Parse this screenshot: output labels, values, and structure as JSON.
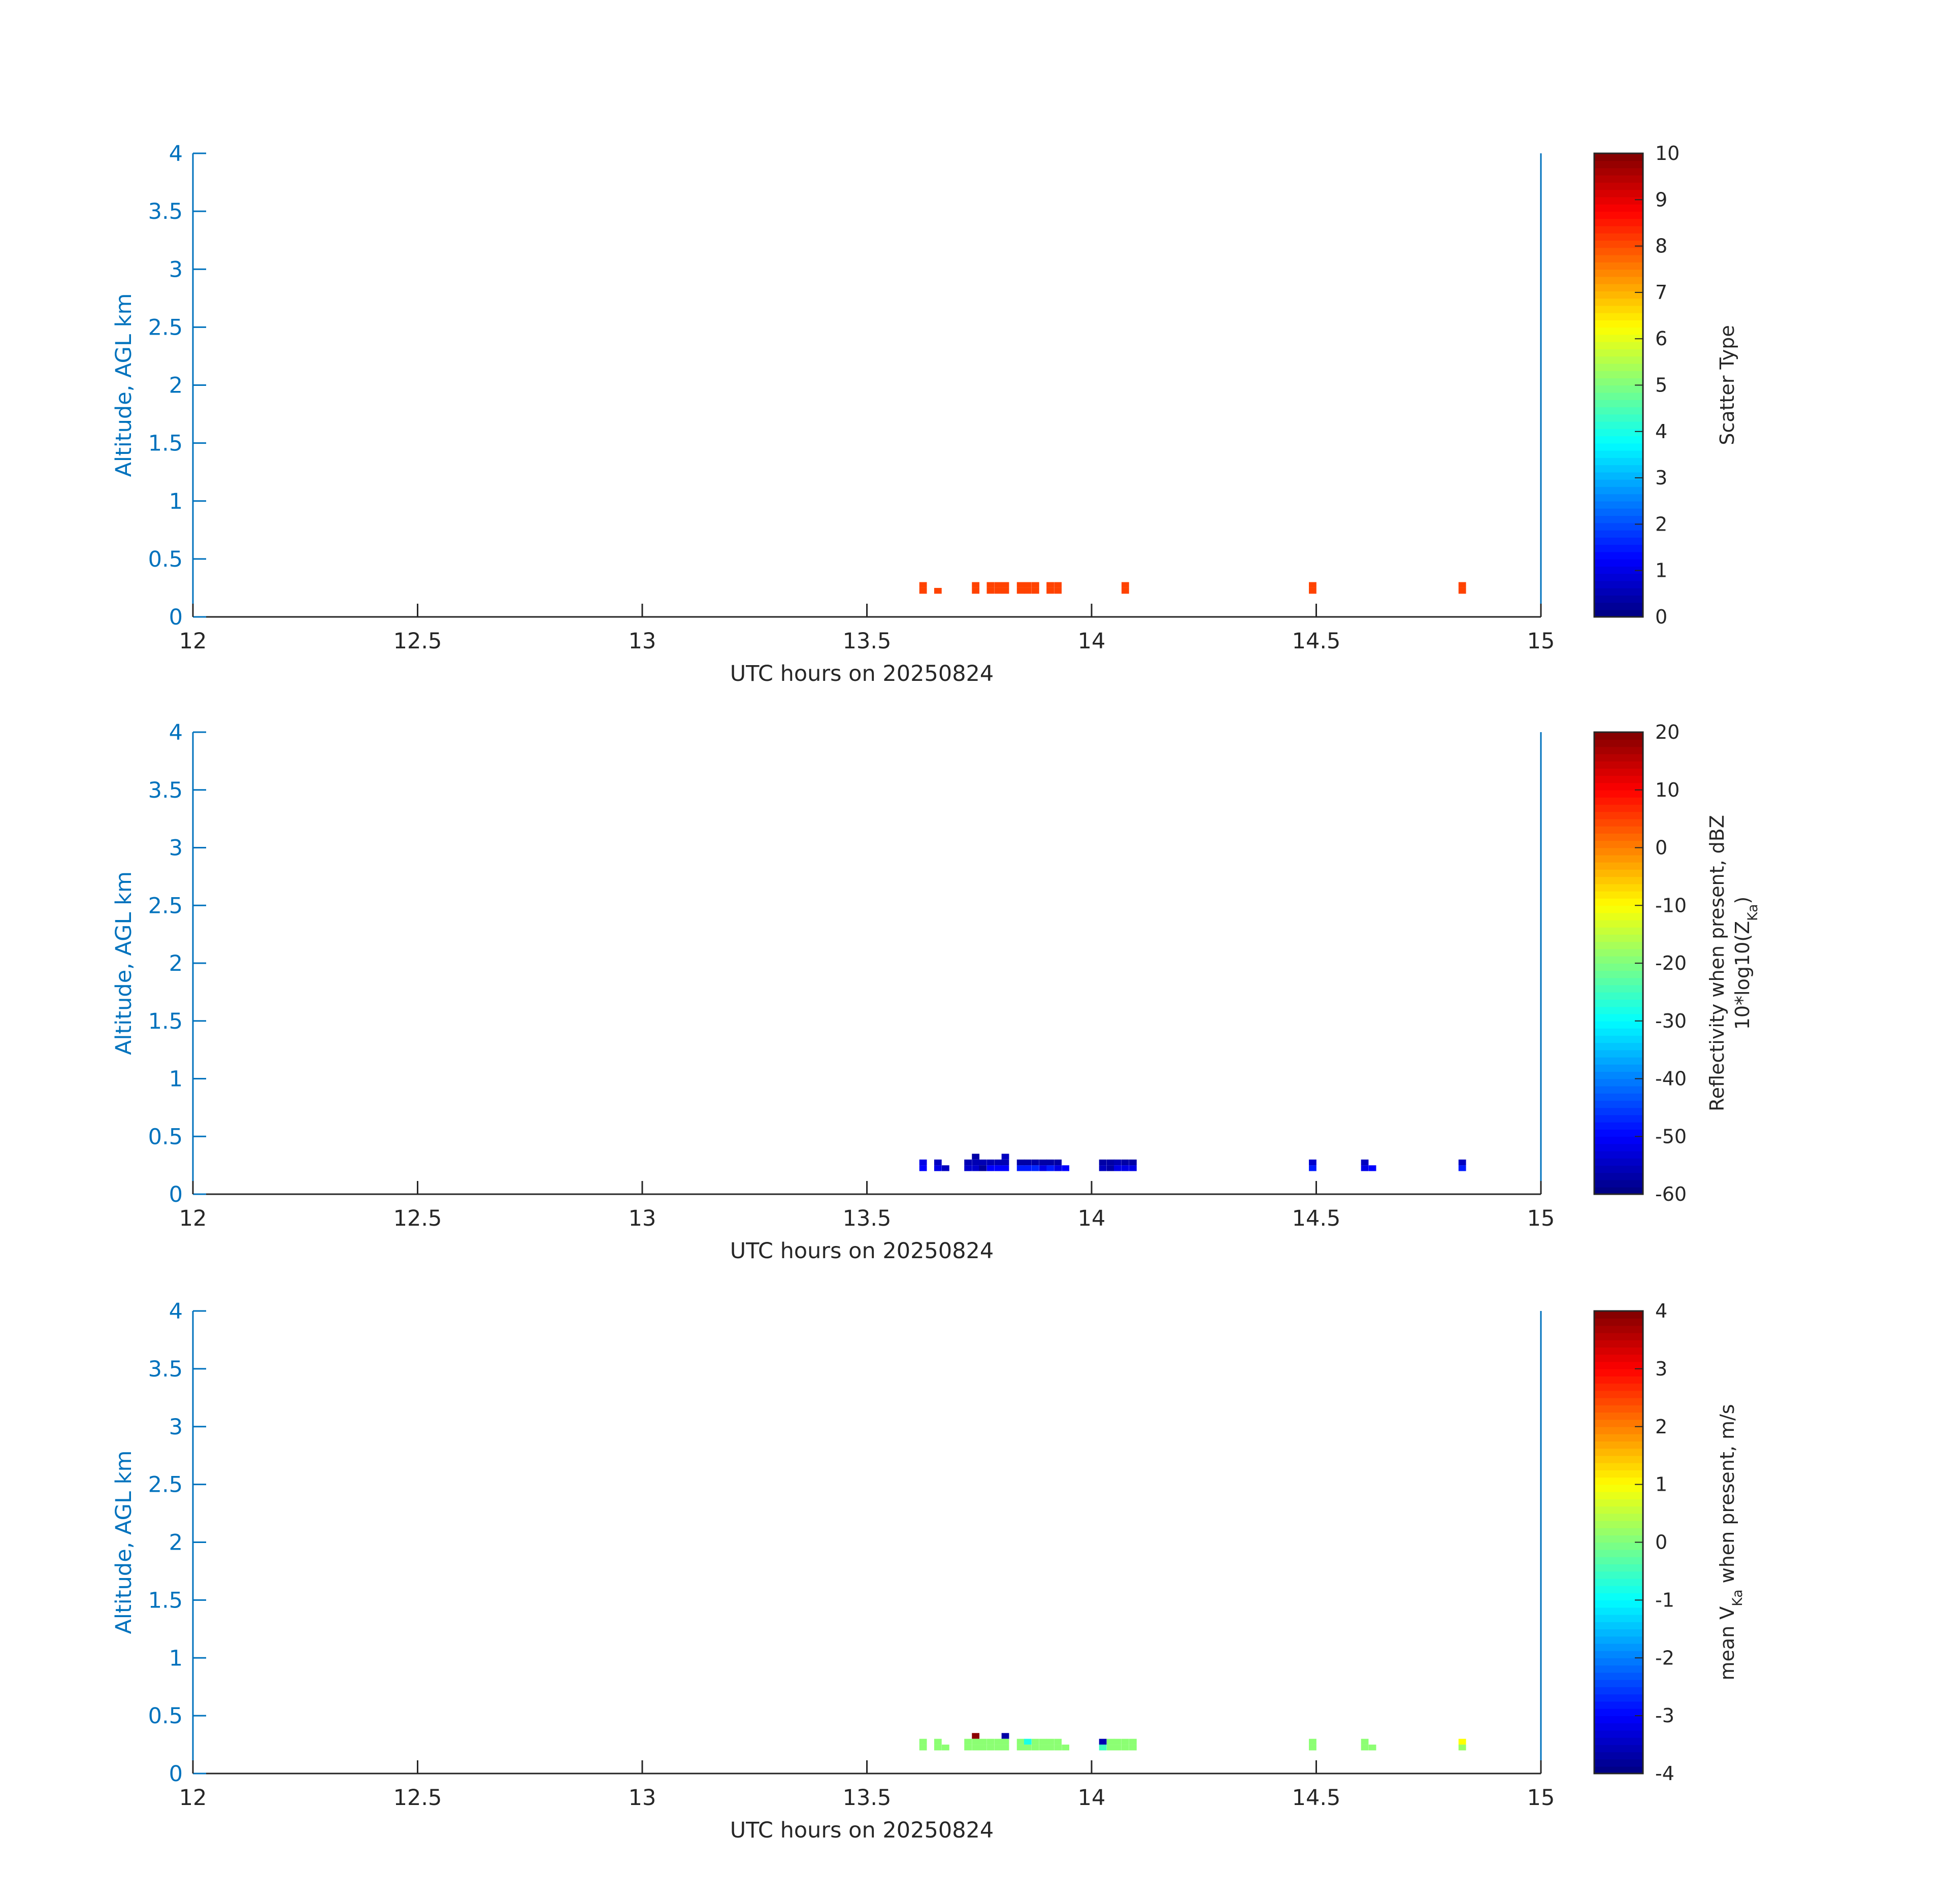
{
  "chart_data": [
    {
      "type": "heatmap",
      "ylabel": "Altitude, AGL km",
      "xlabel": "UTC hours on 20250824",
      "xlim": [
        12,
        15
      ],
      "ylim": [
        0,
        4
      ],
      "xticks": [
        "12",
        "12.5",
        "13",
        "13.5",
        "14",
        "14.5",
        "15"
      ],
      "yticks": [
        "0",
        "0.5",
        "1",
        "1.5",
        "2",
        "2.5",
        "3",
        "3.5",
        "4"
      ],
      "colormap": "jet",
      "colorbar": {
        "label": "Scatter Type",
        "label_sub": "",
        "range": [
          0,
          10
        ],
        "ticks": [
          "0",
          "1",
          "2",
          "3",
          "4",
          "5",
          "6",
          "7",
          "8",
          "9",
          "10"
        ]
      },
      "cells": [
        [
          13.625,
          0.275,
          8.1
        ],
        [
          13.625,
          0.225,
          8.1
        ],
        [
          13.658,
          0.225,
          8.1
        ],
        [
          13.742,
          0.275,
          8.1
        ],
        [
          13.742,
          0.225,
          8.1
        ],
        [
          13.775,
          0.275,
          8.1
        ],
        [
          13.775,
          0.225,
          8.1
        ],
        [
          13.792,
          0.275,
          8.1
        ],
        [
          13.792,
          0.225,
          8.1
        ],
        [
          13.808,
          0.275,
          8.1
        ],
        [
          13.808,
          0.225,
          8.1
        ],
        [
          13.842,
          0.275,
          8.1
        ],
        [
          13.842,
          0.225,
          8.1
        ],
        [
          13.858,
          0.275,
          8.1
        ],
        [
          13.858,
          0.225,
          8.1
        ],
        [
          13.875,
          0.275,
          8.1
        ],
        [
          13.875,
          0.225,
          8.1
        ],
        [
          13.908,
          0.275,
          8.1
        ],
        [
          13.908,
          0.225,
          8.1
        ],
        [
          13.925,
          0.275,
          8.1
        ],
        [
          13.925,
          0.225,
          8.1
        ],
        [
          14.075,
          0.275,
          8.1
        ],
        [
          14.075,
          0.225,
          8.1
        ],
        [
          14.492,
          0.275,
          8.1
        ],
        [
          14.492,
          0.225,
          8.1
        ],
        [
          14.825,
          0.275,
          8.1
        ],
        [
          14.825,
          0.225,
          8.1
        ]
      ]
    },
    {
      "type": "heatmap",
      "ylabel": "Altitude, AGL km",
      "xlabel": "UTC hours on 20250824",
      "xlim": [
        12,
        15
      ],
      "ylim": [
        0,
        4
      ],
      "xticks": [
        "12",
        "12.5",
        "13",
        "13.5",
        "14",
        "14.5",
        "15"
      ],
      "yticks": [
        "0",
        "0.5",
        "1",
        "1.5",
        "2",
        "2.5",
        "3",
        "3.5",
        "4"
      ],
      "colormap": "jet",
      "colorbar": {
        "label": "Reflectivity when present, dBZ",
        "label_sub": "10*log10(Z_Ka)",
        "range": [
          -60,
          20
        ],
        "ticks": [
          "-60",
          "-50",
          "-40",
          "-30",
          "-20",
          "-10",
          "0",
          "10",
          "20"
        ]
      },
      "cells": [
        [
          13.625,
          0.275,
          -52
        ],
        [
          13.625,
          0.225,
          -50
        ],
        [
          13.658,
          0.275,
          -55
        ],
        [
          13.658,
          0.225,
          -52
        ],
        [
          13.675,
          0.225,
          -55
        ],
        [
          13.725,
          0.275,
          -56
        ],
        [
          13.725,
          0.225,
          -54
        ],
        [
          13.742,
          0.325,
          -57
        ],
        [
          13.742,
          0.275,
          -56
        ],
        [
          13.742,
          0.225,
          -54
        ],
        [
          13.758,
          0.275,
          -56
        ],
        [
          13.758,
          0.225,
          -58
        ],
        [
          13.775,
          0.275,
          -56
        ],
        [
          13.775,
          0.225,
          -50
        ],
        [
          13.792,
          0.275,
          -56
        ],
        [
          13.792,
          0.225,
          -50
        ],
        [
          13.808,
          0.325,
          -55
        ],
        [
          13.808,
          0.275,
          -56
        ],
        [
          13.808,
          0.225,
          -50
        ],
        [
          13.842,
          0.275,
          -57
        ],
        [
          13.842,
          0.225,
          -48
        ],
        [
          13.858,
          0.275,
          -57
        ],
        [
          13.858,
          0.225,
          -48
        ],
        [
          13.875,
          0.275,
          -57
        ],
        [
          13.875,
          0.225,
          -47
        ],
        [
          13.892,
          0.275,
          -57
        ],
        [
          13.892,
          0.225,
          -52
        ],
        [
          13.908,
          0.275,
          -57
        ],
        [
          13.908,
          0.225,
          -48
        ],
        [
          13.925,
          0.275,
          -57
        ],
        [
          13.925,
          0.225,
          -52
        ],
        [
          13.942,
          0.225,
          -50
        ],
        [
          14.025,
          0.275,
          -57
        ],
        [
          14.025,
          0.225,
          -55
        ],
        [
          14.042,
          0.275,
          -57
        ],
        [
          14.042,
          0.225,
          -57
        ],
        [
          14.058,
          0.275,
          -56
        ],
        [
          14.058,
          0.225,
          -52
        ],
        [
          14.075,
          0.275,
          -57
        ],
        [
          14.075,
          0.225,
          -52
        ],
        [
          14.092,
          0.275,
          -57
        ],
        [
          14.092,
          0.225,
          -52
        ],
        [
          14.492,
          0.275,
          -54
        ],
        [
          14.492,
          0.225,
          -48
        ],
        [
          14.608,
          0.275,
          -55
        ],
        [
          14.608,
          0.225,
          -52
        ],
        [
          14.625,
          0.225,
          -50
        ],
        [
          14.825,
          0.275,
          -55
        ],
        [
          14.825,
          0.225,
          -48
        ]
      ]
    },
    {
      "type": "heatmap",
      "ylabel": "Altitude, AGL km",
      "xlabel": "UTC hours on 20250824",
      "xlim": [
        12,
        15
      ],
      "ylim": [
        0,
        4
      ],
      "xticks": [
        "12",
        "12.5",
        "13",
        "13.5",
        "14",
        "14.5",
        "15"
      ],
      "yticks": [
        "0",
        "0.5",
        "1",
        "1.5",
        "2",
        "2.5",
        "3",
        "3.5",
        "4"
      ],
      "colormap": "jet",
      "colorbar": {
        "label": "mean V_Ka when present, m/s",
        "label_sub": "",
        "range": [
          -4,
          4
        ],
        "ticks": [
          "-4",
          "-3",
          "-2",
          "-1",
          "0",
          "1",
          "2",
          "3",
          "4"
        ]
      },
      "cells": [
        [
          13.625,
          0.275,
          0.1
        ],
        [
          13.625,
          0.225,
          0.1
        ],
        [
          13.658,
          0.275,
          0.1
        ],
        [
          13.658,
          0.225,
          0.1
        ],
        [
          13.675,
          0.225,
          0.1
        ],
        [
          13.742,
          0.325,
          3.9
        ],
        [
          13.725,
          0.275,
          0.1
        ],
        [
          13.725,
          0.225,
          0.1
        ],
        [
          13.742,
          0.275,
          0.1
        ],
        [
          13.742,
          0.225,
          0.1
        ],
        [
          13.758,
          0.275,
          0.1
        ],
        [
          13.758,
          0.225,
          0.1
        ],
        [
          13.775,
          0.275,
          0.1
        ],
        [
          13.775,
          0.225,
          0.1
        ],
        [
          13.792,
          0.275,
          0.1
        ],
        [
          13.792,
          0.225,
          0.1
        ],
        [
          13.808,
          0.325,
          -3.7
        ],
        [
          13.808,
          0.275,
          0.1
        ],
        [
          13.808,
          0.225,
          0.1
        ],
        [
          13.842,
          0.275,
          0.1
        ],
        [
          13.842,
          0.225,
          0.1
        ],
        [
          13.858,
          0.275,
          -0.8
        ],
        [
          13.858,
          0.225,
          0.1
        ],
        [
          13.875,
          0.275,
          0.1
        ],
        [
          13.875,
          0.225,
          0.1
        ],
        [
          13.892,
          0.275,
          0.1
        ],
        [
          13.892,
          0.225,
          0.1
        ],
        [
          13.908,
          0.275,
          0.1
        ],
        [
          13.908,
          0.225,
          0.1
        ],
        [
          13.925,
          0.275,
          0.1
        ],
        [
          13.925,
          0.225,
          0.1
        ],
        [
          13.942,
          0.225,
          0.1
        ],
        [
          14.025,
          0.275,
          -3.6
        ],
        [
          14.025,
          0.225,
          -0.5
        ],
        [
          14.042,
          0.275,
          0.1
        ],
        [
          14.042,
          0.225,
          0.1
        ],
        [
          14.058,
          0.275,
          0.1
        ],
        [
          14.058,
          0.225,
          0.1
        ],
        [
          14.075,
          0.275,
          0.1
        ],
        [
          14.075,
          0.225,
          0.1
        ],
        [
          14.092,
          0.275,
          0.1
        ],
        [
          14.092,
          0.225,
          0.1
        ],
        [
          14.492,
          0.275,
          0.1
        ],
        [
          14.492,
          0.225,
          0.1
        ],
        [
          14.608,
          0.275,
          0.1
        ],
        [
          14.608,
          0.225,
          0.1
        ],
        [
          14.625,
          0.225,
          0.1
        ],
        [
          14.825,
          0.275,
          1.0
        ],
        [
          14.825,
          0.225,
          0.2
        ]
      ]
    }
  ]
}
